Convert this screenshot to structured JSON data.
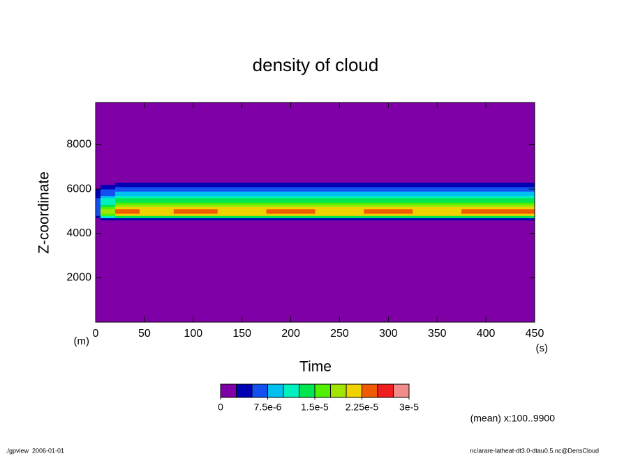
{
  "chart_data": {
    "type": "contour",
    "title": "density of cloud",
    "xlabel": "Time",
    "ylabel": "Z-coordinate",
    "xunit": "(s)",
    "yunit": "(m)",
    "note": "(mean) x:100..9900",
    "footer_left": "./gpview  2006-01-01",
    "footer_right": "nc/arare-latheat-dt3.0-dtau0.5.nc@DensCloud",
    "xlim": [
      0,
      450
    ],
    "xticks": [
      0,
      50,
      100,
      150,
      200,
      250,
      300,
      350,
      400,
      450
    ],
    "ylim": [
      0,
      9900
    ],
    "yticks": [
      2000,
      4000,
      6000,
      8000
    ],
    "x": [
      0,
      10,
      30,
      60,
      100,
      150,
      200,
      250,
      300,
      350,
      400,
      450
    ],
    "y": [
      4550,
      4650,
      4750,
      4850,
      4950,
      5050,
      5150,
      5250,
      5350,
      5450,
      5550,
      5650,
      5750,
      5850,
      5950,
      6050,
      6150,
      6250,
      6350
    ],
    "z": [
      [
        0,
        0,
        3e-06,
        5e-06,
        6e-06,
        6e-06,
        6e-06,
        6e-06,
        6e-06,
        5e-06,
        5e-06,
        4e-06,
        4e-06,
        3e-06,
        3e-06,
        2e-06,
        0,
        0,
        0
      ],
      [
        0,
        3e-06,
        1e-05,
        1.6e-05,
        1.9e-05,
        1.8e-05,
        1.6e-05,
        1.4e-05,
        1.2e-05,
        1.1e-05,
        1e-05,
        8e-06,
        7e-06,
        6e-06,
        5e-06,
        4e-06,
        3e-06,
        0,
        0
      ],
      [
        0,
        3e-06,
        1.3e-05,
        2.1e-05,
        2.4e-05,
        2.3e-05,
        2e-05,
        1.9e-05,
        1.6e-05,
        1.45e-05,
        1.3e-05,
        1.1e-05,
        9e-06,
        8e-06,
        7e-06,
        6e-06,
        4e-06,
        3e-06,
        0
      ],
      [
        0,
        3e-06,
        1.3e-05,
        2.1e-05,
        2.2e-05,
        2.1e-05,
        2e-05,
        1.9e-05,
        1.6e-05,
        1.45e-05,
        1.3e-05,
        1.1e-05,
        9e-06,
        8e-06,
        7e-06,
        6e-06,
        4e-06,
        3e-06,
        0
      ],
      [
        0,
        3e-06,
        1.3e-05,
        2.1e-05,
        2.4e-05,
        2.3e-05,
        2e-05,
        1.9e-05,
        1.6e-05,
        1.45e-05,
        1.3e-05,
        1.1e-05,
        9e-06,
        8e-06,
        7e-06,
        6e-06,
        4e-06,
        3e-06,
        0
      ],
      [
        0,
        3e-06,
        1.3e-05,
        2.1e-05,
        2.2e-05,
        2.1e-05,
        2e-05,
        1.9e-05,
        1.6e-05,
        1.45e-05,
        1.3e-05,
        1.1e-05,
        9e-06,
        8e-06,
        7e-06,
        6e-06,
        4e-06,
        3e-06,
        0
      ],
      [
        0,
        3e-06,
        1.3e-05,
        2.1e-05,
        2.4e-05,
        2.3e-05,
        2e-05,
        1.9e-05,
        1.6e-05,
        1.45e-05,
        1.3e-05,
        1.1e-05,
        9e-06,
        8e-06,
        7e-06,
        6e-06,
        4e-06,
        3e-06,
        0
      ],
      [
        0,
        3e-06,
        1.3e-05,
        2.1e-05,
        2.2e-05,
        2.1e-05,
        2e-05,
        1.9e-05,
        1.6e-05,
        1.45e-05,
        1.3e-05,
        1.1e-05,
        9e-06,
        8e-06,
        7e-06,
        6e-06,
        4e-06,
        3e-06,
        0
      ],
      [
        0,
        3e-06,
        1.3e-05,
        2.1e-05,
        2.4e-05,
        2.3e-05,
        2e-05,
        1.9e-05,
        1.6e-05,
        1.45e-05,
        1.3e-05,
        1.1e-05,
        9e-06,
        8e-06,
        7e-06,
        6e-06,
        4e-06,
        3e-06,
        0
      ],
      [
        0,
        3e-06,
        1.3e-05,
        2.1e-05,
        2.2e-05,
        2.1e-05,
        2e-05,
        1.9e-05,
        1.6e-05,
        1.45e-05,
        1.3e-05,
        1.1e-05,
        9e-06,
        8e-06,
        7e-06,
        6e-06,
        4e-06,
        3e-06,
        0
      ],
      [
        0,
        3e-06,
        1.3e-05,
        2.1e-05,
        2.4e-05,
        2.3e-05,
        2e-05,
        1.9e-05,
        1.6e-05,
        1.45e-05,
        1.3e-05,
        1.1e-05,
        9e-06,
        8e-06,
        7e-06,
        6e-06,
        4e-06,
        3e-06,
        0
      ],
      [
        0,
        3e-06,
        1.3e-05,
        2.1e-05,
        2.4e-05,
        2.3e-05,
        2e-05,
        1.9e-05,
        1.6e-05,
        1.45e-05,
        1.3e-05,
        1.1e-05,
        9e-06,
        8e-06,
        7e-06,
        6e-06,
        4e-06,
        3e-06,
        0
      ]
    ],
    "clim": [
      0,
      3e-05
    ],
    "cticks": [
      0,
      {
        "value": 7.5e-06,
        "label": "7.5e-6"
      },
      {
        "value": 1.5e-05,
        "label": "1.5e-5"
      },
      {
        "value": 2.25e-05,
        "label": "2.25e-5"
      },
      {
        "value": 3e-05,
        "label": "3e-5"
      }
    ],
    "colors": [
      "#7f00a6",
      "#0000b4",
      "#1450f0",
      "#00c0f0",
      "#00f0c0",
      "#00e650",
      "#50f000",
      "#a0e600",
      "#f0d200",
      "#f05a00",
      "#f01e1e",
      "#f08c8c"
    ]
  }
}
